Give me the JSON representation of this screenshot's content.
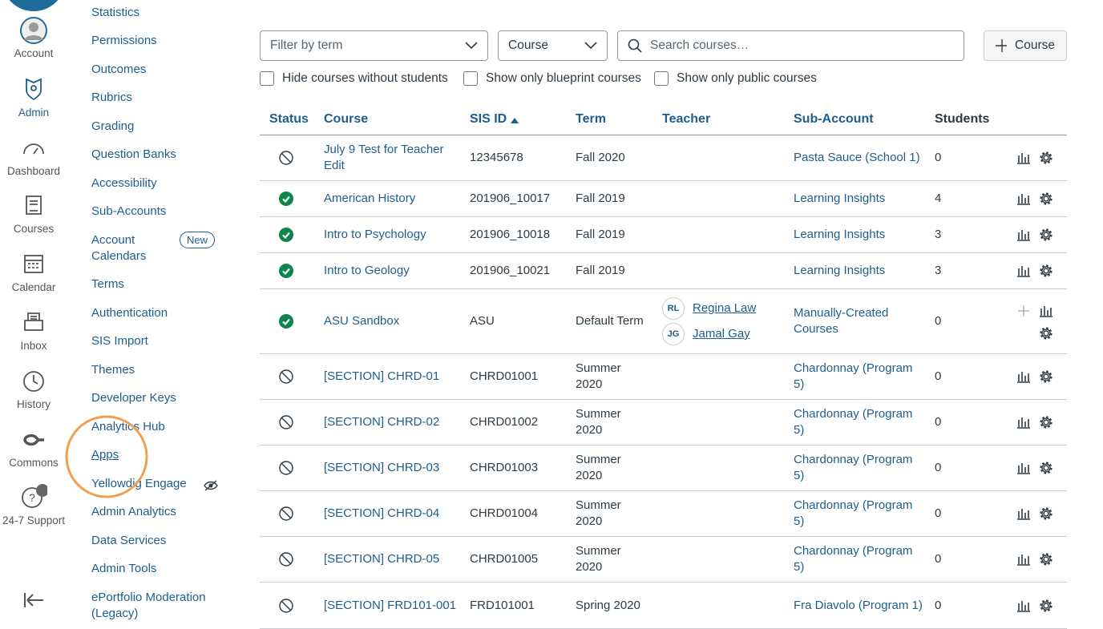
{
  "global_nav": {
    "items": [
      "Account",
      "Admin",
      "Dashboard",
      "Courses",
      "Calendar",
      "Inbox",
      "History",
      "Commons",
      "24-7 Support"
    ]
  },
  "account_nav": {
    "items": [
      "Statistics",
      "Permissions",
      "Outcomes",
      "Rubrics",
      "Grading",
      "Question Banks",
      "Accessibility",
      "Sub-Accounts",
      "Account Calendars",
      "Terms",
      "Authentication",
      "SIS Import",
      "Themes",
      "Developer Keys",
      "Analytics Hub",
      "Apps",
      "Yellowdig Engage",
      "Admin Analytics",
      "Data Services",
      "Admin Tools",
      "ePortfolio Moderation (Legacy)"
    ],
    "badge": "New"
  },
  "filters": {
    "term_placeholder": "Filter by term",
    "type": "Course",
    "search_placeholder": "Search courses…",
    "add_button": "Course"
  },
  "checkboxes": [
    "Hide courses without students",
    "Show only blueprint courses",
    "Show only public courses"
  ],
  "table": {
    "headers": [
      "Status",
      "Course",
      "SIS ID",
      "Term",
      "Teacher",
      "Sub-Account",
      "Students"
    ],
    "rows": [
      {
        "course": "July 9 Test for Teacher Edit",
        "sis_id": "12345678",
        "term": "Fall 2020",
        "teachers": [],
        "sub_account": "Pasta Sauce (School 1)",
        "students": 0
      },
      {
        "course": "American History",
        "sis_id": "201906_10017",
        "term": "Fall 2019",
        "teachers": [],
        "sub_account": "Learning Insights",
        "students": 4
      },
      {
        "course": "Intro to Psychology",
        "sis_id": "201906_10018",
        "term": "Fall 2019",
        "teachers": [],
        "sub_account": "Learning Insights",
        "students": 3
      },
      {
        "course": "Intro to Geology",
        "sis_id": "201906_10021",
        "term": "Fall 2019",
        "teachers": [],
        "sub_account": "Learning Insights",
        "students": 3
      },
      {
        "course": "ASU Sandbox",
        "sis_id": "ASU",
        "term": "Default Term",
        "teachers": [
          {
            "initials": "RL",
            "name": "Regina Law"
          },
          {
            "initials": "JG",
            "name": "Jamal Gay"
          }
        ],
        "sub_account": "Manually-Created Courses",
        "students": 0
      },
      {
        "course": "[SECTION] CHRD-01",
        "sis_id": "CHRD01001",
        "term": "Summer 2020",
        "teachers": [],
        "sub_account": "Chardonnay (Program 5)",
        "students": 0
      },
      {
        "course": "[SECTION] CHRD-02",
        "sis_id": "CHRD01002",
        "term": "Summer 2020",
        "teachers": [],
        "sub_account": "Chardonnay (Program 5)",
        "students": 0
      },
      {
        "course": "[SECTION] CHRD-03",
        "sis_id": "CHRD01003",
        "term": "Summer 2020",
        "teachers": [],
        "sub_account": "Chardonnay (Program 5)",
        "students": 0
      },
      {
        "course": "[SECTION] CHRD-04",
        "sis_id": "CHRD01004",
        "term": "Summer 2020",
        "teachers": [],
        "sub_account": "Chardonnay (Program 5)",
        "students": 0
      },
      {
        "course": "[SECTION] CHRD-05",
        "sis_id": "CHRD01005",
        "term": "Summer 2020",
        "teachers": [],
        "sub_account": "Chardonnay (Program 5)",
        "students": 0
      },
      {
        "course": "[SECTION] FRD101-001",
        "sis_id": "FRD101001",
        "term": "Spring 2020",
        "teachers": [],
        "sub_account": "Fra Diavolo (Program 1)",
        "students": 0
      }
    ]
  }
}
